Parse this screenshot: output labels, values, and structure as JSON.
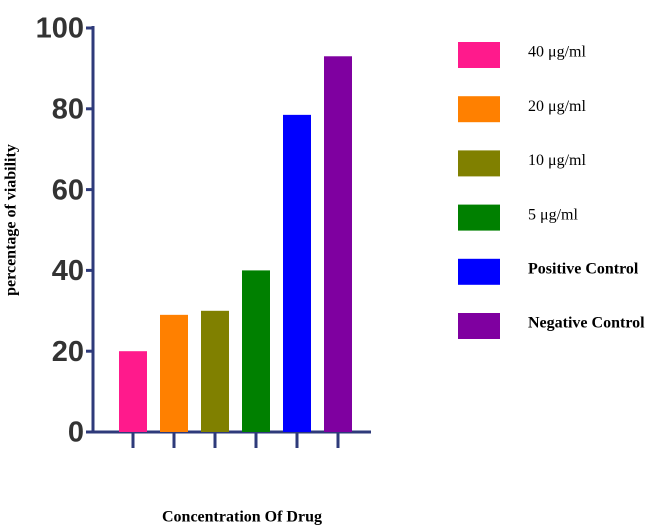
{
  "chart_data": {
    "type": "bar",
    "y_label": "percentage of viability",
    "x_label": "Concentration Of Drug",
    "series": [
      {
        "name": "40 μg/ml",
        "color": "#ff1a8c",
        "values": [
          20
        ]
      },
      {
        "name": "20 μg/ml",
        "color": "#ff8000",
        "values": [
          29
        ]
      },
      {
        "name": "10 μg/ml",
        "color": "#808000",
        "values": [
          30
        ]
      },
      {
        "name": "5 μg/ml",
        "color": "#008000",
        "values": [
          40
        ]
      },
      {
        "name": "Positive Control",
        "color": "#0000ff",
        "values": [
          78.5
        ]
      },
      {
        "name": "Negative Control",
        "color": "#7f00a0",
        "values": [
          93
        ]
      }
    ],
    "ylim": [
      0,
      100
    ],
    "yticks": [
      0,
      20,
      40,
      60,
      80,
      100
    ],
    "grid": false,
    "legend": "right"
  }
}
